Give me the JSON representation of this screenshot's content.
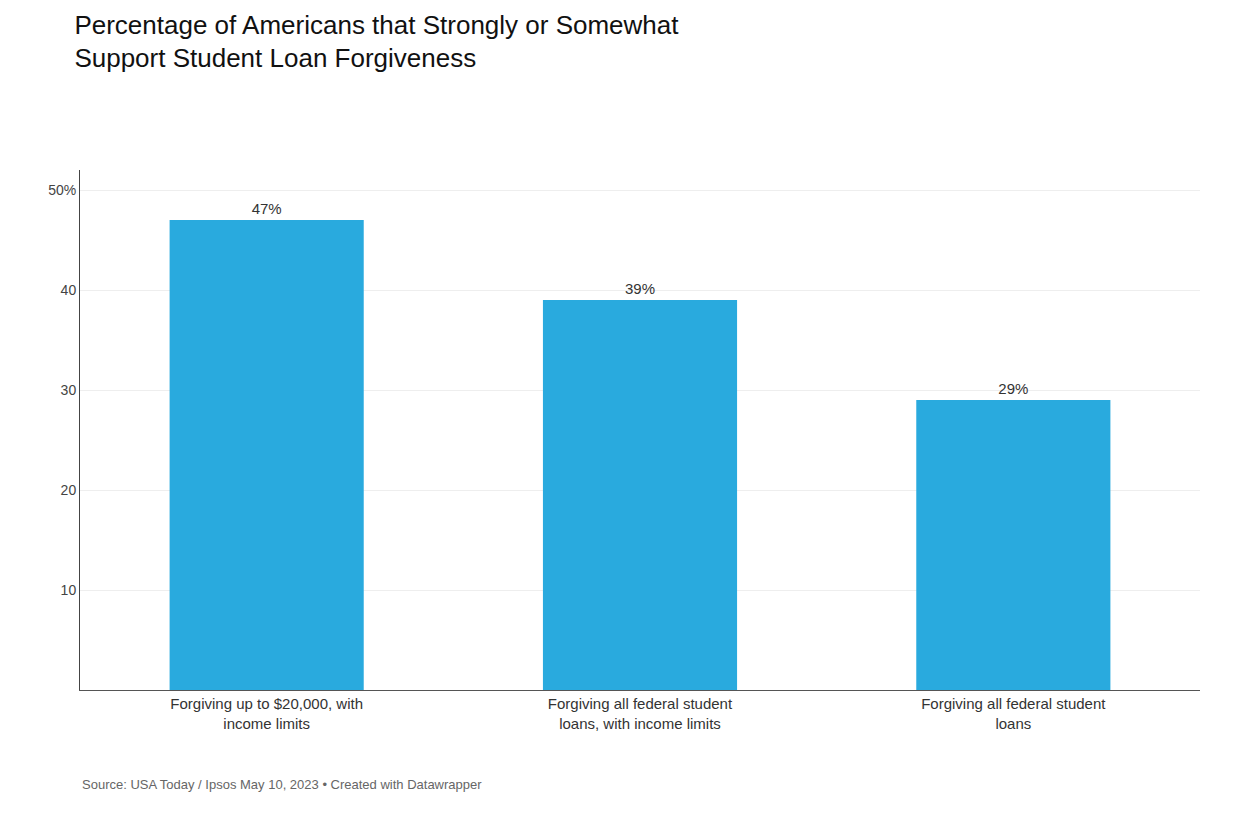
{
  "chart_data": {
    "type": "bar",
    "title": "Percentage of Americans that Strongly or Somewhat\nSupport Student Loan Forgiveness",
    "categories": [
      "Forgiving up to $20,000, with\nincome limits",
      "Forgiving all federal student\nloans, with income limits",
      "Forgiving all federal student\nloans"
    ],
    "values": [
      47,
      39,
      29
    ],
    "value_labels": [
      "47%",
      "39%",
      "29%"
    ],
    "data_labels": true,
    "color": "#29AADE",
    "ylim": [
      0,
      52
    ],
    "yticks": [
      10,
      20,
      30,
      40,
      {
        "value": 50,
        "label": "50%"
      }
    ],
    "grid": true,
    "source": "Source: USA Today / Ipsos May 10, 2023 • Created with Datawrapper"
  }
}
